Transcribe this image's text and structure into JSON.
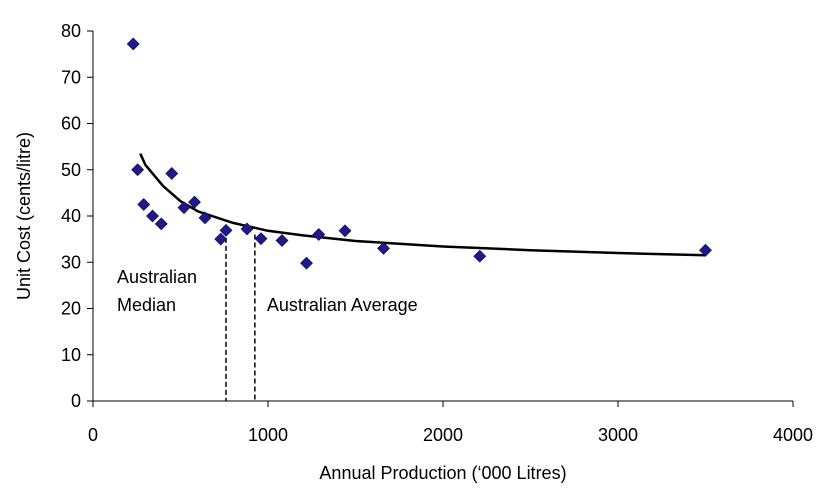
{
  "chart_data": {
    "type": "scatter",
    "title": "",
    "xlabel": "Annual Production (‘000 Litres)",
    "ylabel": "Unit Cost (cents/litre)",
    "xlim": [
      0,
      4000
    ],
    "ylim": [
      0,
      80
    ],
    "x_ticks": [
      0,
      1000,
      2000,
      3000,
      4000
    ],
    "y_ticks": [
      0,
      10,
      20,
      30,
      40,
      50,
      60,
      70,
      80
    ],
    "x_tick_labels": [
      "0",
      "1000",
      "2000",
      "3000",
      "4000"
    ],
    "y_tick_labels": [
      "0",
      "10",
      "20",
      "30",
      "40",
      "50",
      "60",
      "70",
      "80"
    ],
    "grid": false,
    "legend": "none",
    "marker": "diamond",
    "marker_color": "#1f1a8c",
    "series": [
      {
        "points": [
          {
            "x": 230,
            "y": 77.2
          },
          {
            "x": 255,
            "y": 50.0
          },
          {
            "x": 290,
            "y": 42.5
          },
          {
            "x": 340,
            "y": 40.0
          },
          {
            "x": 390,
            "y": 38.3
          },
          {
            "x": 450,
            "y": 49.2
          },
          {
            "x": 520,
            "y": 41.8
          },
          {
            "x": 580,
            "y": 43.0
          },
          {
            "x": 640,
            "y": 39.6
          },
          {
            "x": 730,
            "y": 35.0
          },
          {
            "x": 760,
            "y": 36.9
          },
          {
            "x": 880,
            "y": 37.2
          },
          {
            "x": 960,
            "y": 35.1
          },
          {
            "x": 1080,
            "y": 34.7
          },
          {
            "x": 1220,
            "y": 29.8
          },
          {
            "x": 1290,
            "y": 36.0
          },
          {
            "x": 1440,
            "y": 36.8
          },
          {
            "x": 1660,
            "y": 33.0
          },
          {
            "x": 2210,
            "y": 31.3
          },
          {
            "x": 3500,
            "y": 32.6
          }
        ]
      }
    ],
    "trendline": {
      "type": "power",
      "color": "#000000",
      "points": [
        {
          "x": 270,
          "y": 53.5
        },
        {
          "x": 300,
          "y": 51.0
        },
        {
          "x": 400,
          "y": 46.5
        },
        {
          "x": 500,
          "y": 43.2
        },
        {
          "x": 600,
          "y": 41.0
        },
        {
          "x": 800,
          "y": 38.5
        },
        {
          "x": 1000,
          "y": 36.8
        },
        {
          "x": 1200,
          "y": 35.8
        },
        {
          "x": 1500,
          "y": 34.6
        },
        {
          "x": 2000,
          "y": 33.4
        },
        {
          "x": 2500,
          "y": 32.6
        },
        {
          "x": 3000,
          "y": 32.0
        },
        {
          "x": 3500,
          "y": 31.5
        }
      ]
    },
    "reference_lines": [
      {
        "x": 760,
        "y_top": 37.0,
        "label_lines": [
          "Australian",
          "Median"
        ],
        "label_side": "left",
        "label_y": 25.5
      },
      {
        "x": 925,
        "y_top": 36.0,
        "label_lines": [
          "Australian Average"
        ],
        "label_side": "right",
        "label_y": 19.5
      }
    ]
  }
}
